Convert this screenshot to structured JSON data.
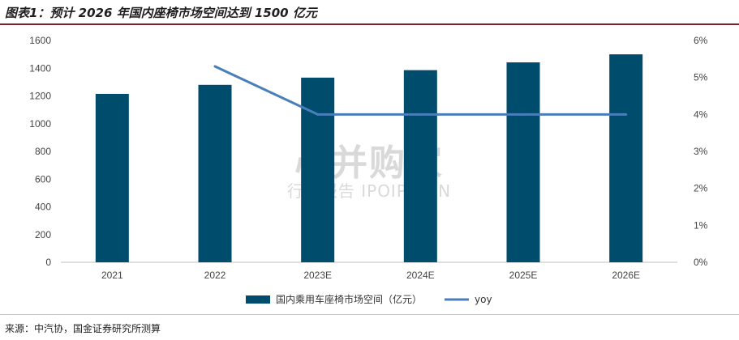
{
  "header": {
    "title": "图表1：预计 2026 年国内座椅市场空间达到 1500 亿元"
  },
  "footer": {
    "source": "来源：中汽协，国金证券研究所测算"
  },
  "watermark": {
    "line1": "心并购家",
    "line2": "行业报告 IPOIPO.CN"
  },
  "colors": {
    "bar": "#004c6d",
    "line": "#4a7ebb",
    "axis": "#bfbfbf"
  },
  "chart_data": {
    "type": "bar",
    "categories": [
      "2021",
      "2022",
      "2023E",
      "2024E",
      "2025E",
      "2026E"
    ],
    "series": [
      {
        "name": "国内乘用车座椅市场空间（亿元）",
        "type": "bar",
        "axis": "left",
        "values": [
          1215,
          1280,
          1332,
          1386,
          1442,
          1500
        ]
      },
      {
        "name": "yoy",
        "type": "line",
        "axis": "right",
        "values": [
          null,
          5.3,
          4.0,
          4.0,
          4.0,
          4.0
        ]
      }
    ],
    "y_left": {
      "min": 0,
      "max": 1600,
      "ticks": [
        "0",
        "200",
        "400",
        "600",
        "800",
        "1000",
        "1200",
        "1400",
        "1600"
      ]
    },
    "y_right": {
      "min": 0,
      "max": 6,
      "ticks": [
        "0%",
        "1%",
        "2%",
        "3%",
        "4%",
        "5%",
        "6%"
      ]
    },
    "grid": false,
    "legend_position": "bottom"
  }
}
